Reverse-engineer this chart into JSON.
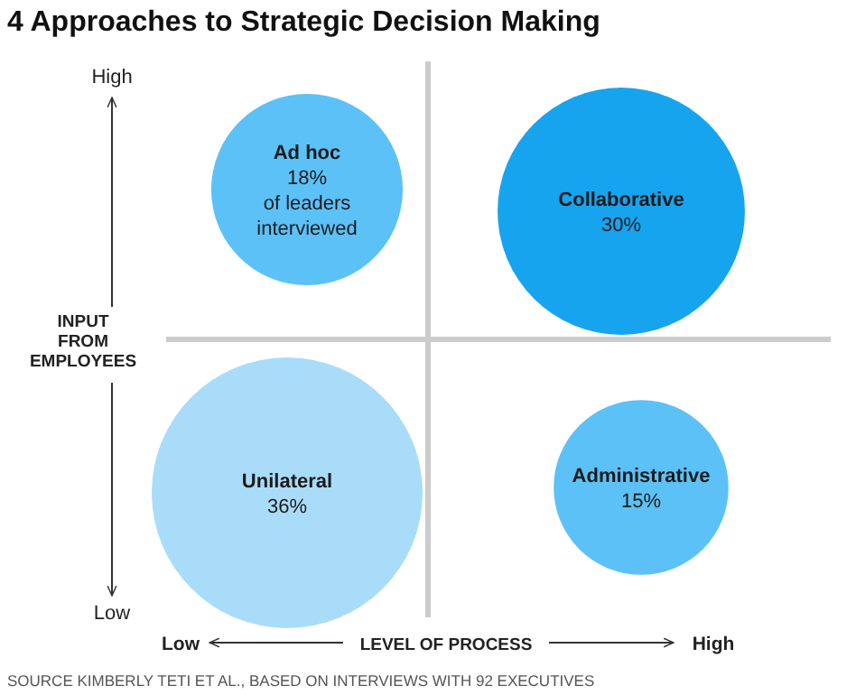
{
  "chart_data": {
    "type": "other",
    "title": "4 Approaches to Strategic Decision Making",
    "xlabel": "LEVEL OF PROCESS",
    "ylabel": "INPUT FROM EMPLOYEES",
    "categories": [
      "Ad hoc",
      "Collaborative",
      "Unilateral",
      "Administrative"
    ],
    "values": [
      18,
      30,
      36,
      15
    ],
    "value_labels": [
      "18%\nof leaders\ninterviewed",
      "30%",
      "36%",
      "15%"
    ],
    "colors": [
      "#5cc1f7",
      "#16a4ef",
      "#a9dcf9",
      "#5cc1f7"
    ],
    "annotations": [
      "High",
      "Low",
      "Low",
      "High",
      "SOURCE KIMBERLY TETI ET AL., BASED ON INTERVIEWS WITH 92 EXECUTIVES"
    ]
  }
}
